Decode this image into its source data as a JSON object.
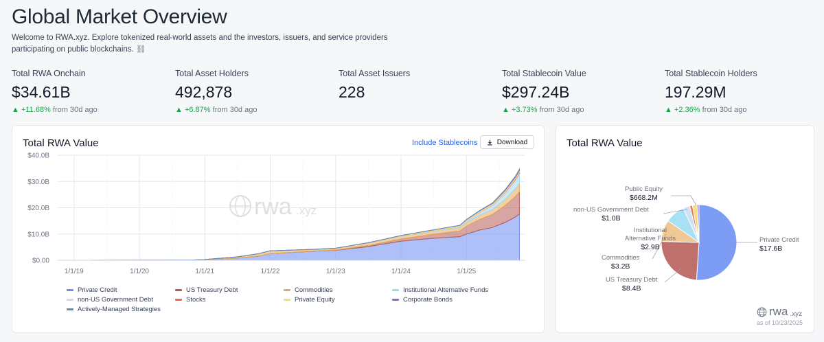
{
  "header": {
    "title": "Global Market Overview",
    "description": "Welcome to RWA.xyz. Explore tokenized real-world assets and the investors, issuers, and service providers participating on public blockchains.",
    "link_glyph": "⛓"
  },
  "stats": [
    {
      "label": "Total RWA Onchain",
      "value": "$34.61B",
      "change": "+11.68%",
      "suffix": "from 30d ago"
    },
    {
      "label": "Total Asset Holders",
      "value": "492,878",
      "change": "+6.87%",
      "suffix": "from 30d ago"
    },
    {
      "label": "Total Asset Issuers",
      "value": "228",
      "change": "",
      "suffix": ""
    },
    {
      "label": "Total Stablecoin Value",
      "value": "$297.24B",
      "change": "+3.73%",
      "suffix": "from 30d ago"
    },
    {
      "label": "Total Stablecoin Holders",
      "value": "197.29M",
      "change": "+2.36%",
      "suffix": "from 30d ago"
    }
  ],
  "area_card": {
    "title": "Total RWA Value",
    "include_stablecoins": "Include Stablecoins",
    "download": "Download",
    "watermark": "rwa",
    "watermark_suffix": ".xyz"
  },
  "pie_card": {
    "title": "Total RWA Value",
    "logo": "rwa",
    "logo_suffix": ".xyz",
    "as_of": "as of 10/23/2025"
  },
  "colors": {
    "accent": "#2563eb",
    "positive": "#16a34a"
  },
  "chart_data": [
    {
      "type": "area",
      "title": "Total RWA Value",
      "xlabel": "",
      "ylabel": "",
      "ylim": [
        0,
        40
      ],
      "yunit": "B",
      "yticks": [
        "$0.00",
        "$10.0B",
        "$20.0B",
        "$30.0B",
        "$40.0B"
      ],
      "xticks": [
        "1/1/19",
        "1/1/20",
        "1/1/21",
        "1/1/22",
        "1/1/23",
        "1/1/24",
        "1/1/25"
      ],
      "x": [
        2018.75,
        2019.0,
        2020.0,
        2020.8,
        2021.0,
        2021.5,
        2021.8,
        2022.0,
        2022.7,
        2023.0,
        2023.5,
        2024.0,
        2024.5,
        2024.9,
        2025.0,
        2025.2,
        2025.4,
        2025.6,
        2025.75,
        2025.81
      ],
      "series": [
        {
          "name": "Private Credit",
          "color": "#6b8df0",
          "values": [
            0,
            0,
            0,
            0,
            0.1,
            0.8,
            1.5,
            2.5,
            3.5,
            3.8,
            5.2,
            7.3,
            8.4,
            9.0,
            10.0,
            11.5,
            12.5,
            14.5,
            16.5,
            17.6
          ]
        },
        {
          "name": "US Treasury Debt",
          "color": "#b75b55",
          "values": [
            0,
            0,
            0,
            0,
            0,
            0,
            0,
            0,
            0.05,
            0.1,
            0.4,
            0.8,
            1.5,
            2.2,
            3.0,
            4.0,
            5.0,
            6.5,
            7.8,
            8.4
          ]
        },
        {
          "name": "Commodities",
          "color": "#e5a95a",
          "values": [
            0,
            0,
            0.05,
            0.1,
            0.2,
            0.5,
            0.9,
            1.1,
            0.6,
            0.6,
            0.9,
            1.0,
            1.1,
            1.2,
            1.3,
            1.6,
            1.9,
            2.4,
            3.0,
            3.2
          ]
        },
        {
          "name": "Institutional Alternative Funds",
          "color": "#9ddcf0",
          "values": [
            0,
            0,
            0,
            0,
            0,
            0,
            0,
            0,
            0,
            0,
            0,
            0,
            0.1,
            0.2,
            0.3,
            0.6,
            1.0,
            1.8,
            2.5,
            2.9
          ]
        },
        {
          "name": "non-US Government Debt",
          "color": "#c8d9f5",
          "values": [
            0,
            0,
            0,
            0,
            0,
            0,
            0,
            0,
            0,
            0,
            0.05,
            0.1,
            0.2,
            0.3,
            0.4,
            0.5,
            0.6,
            0.8,
            0.9,
            1.0
          ]
        },
        {
          "name": "Stocks",
          "color": "#ee6b4d",
          "values": [
            0,
            0,
            0,
            0,
            0,
            0,
            0,
            0,
            0,
            0,
            0,
            0,
            0,
            0,
            0,
            0.05,
            0.1,
            0.2,
            0.3,
            0.4
          ]
        },
        {
          "name": "Private Equity",
          "color": "#f3dd72",
          "values": [
            0,
            0,
            0,
            0,
            0,
            0,
            0,
            0,
            0.05,
            0.1,
            0.15,
            0.2,
            0.3,
            0.4,
            0.45,
            0.5,
            0.55,
            0.6,
            0.65,
            0.67
          ]
        },
        {
          "name": "Corporate Bonds",
          "color": "#9b5fd1",
          "values": [
            0,
            0,
            0,
            0,
            0,
            0,
            0,
            0,
            0,
            0,
            0,
            0,
            0,
            0,
            0.05,
            0.1,
            0.15,
            0.2,
            0.25,
            0.3
          ]
        },
        {
          "name": "Actively-Managed Strategies",
          "color": "#5a8fb8",
          "values": [
            0,
            0,
            0,
            0,
            0,
            0,
            0,
            0,
            0,
            0,
            0,
            0,
            0,
            0,
            0,
            0.02,
            0.05,
            0.1,
            0.15,
            0.2
          ]
        }
      ]
    },
    {
      "type": "pie",
      "title": "Total RWA Value",
      "slices": [
        {
          "name": "Private Credit",
          "value": 17.6,
          "label": "$17.6B",
          "color": "#7d9cf4",
          "show": true
        },
        {
          "name": "US Treasury Debt",
          "value": 8.4,
          "label": "$8.4B",
          "color": "#c0706c",
          "show": true
        },
        {
          "name": "Commodities",
          "value": 3.2,
          "label": "$3.2B",
          "color": "#f0c895",
          "show": true
        },
        {
          "name": "Institutional Alternative Funds",
          "value": 2.9,
          "label": "$2.9B",
          "color": "#a8e0f4",
          "show": true
        },
        {
          "name": "non-US Government Debt",
          "value": 1.0,
          "label": "$1.0B",
          "color": "#cfe0f7",
          "show": true
        },
        {
          "name": "Stocks",
          "value": 0.4,
          "label": "",
          "color": "#ef7656",
          "show": false
        },
        {
          "name": "Public Equity",
          "value": 0.67,
          "label": "$668.2M",
          "color": "#f4e07a",
          "show": true
        },
        {
          "name": "Corporate Bonds",
          "value": 0.3,
          "label": "",
          "color": "#b183dd",
          "show": false
        }
      ]
    }
  ]
}
